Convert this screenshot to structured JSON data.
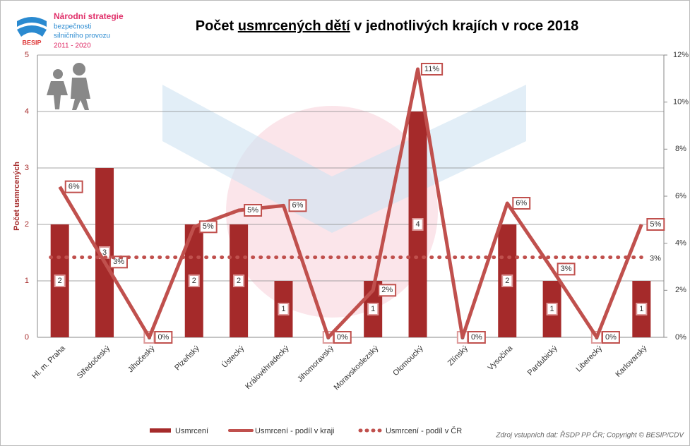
{
  "logo": {
    "mark": "BESIP",
    "lines": [
      "Národní strategie",
      "bezpečnosti",
      "silničního provozu",
      "2011 - 2020"
    ]
  },
  "source": "Zdroj vstupních dat: ŘSDP PP ČR; Copyright © BESIP/CDV",
  "chart_data": {
    "type": "bar-line",
    "title": {
      "before": "Počet ",
      "underlined": "usmrcených dětí",
      "after": " v jednotlivých krajích v roce 2018"
    },
    "y_label": "Počet usmrcených",
    "categories": [
      "Hl. m. Praha",
      "Středočeský",
      "Jihočeský",
      "Plzeňský",
      "Ústecký",
      "Královéhradecký",
      "Jihomoravský",
      "Moravskoslezský",
      "Olomoucký",
      "Zlínský",
      "Vysočina",
      "Pardubický",
      "Liberecký",
      "Karlovarský"
    ],
    "ylim": [
      0,
      5
    ],
    "yticks": [
      0,
      1,
      2,
      3,
      4,
      5
    ],
    "y2lim": [
      0,
      12
    ],
    "y2ticks": [
      {
        "value": 0,
        "label": "0%"
      },
      {
        "value": 2,
        "label": "2%"
      },
      {
        "value": 4,
        "label": "4%"
      },
      {
        "value": 6,
        "label": "6%"
      },
      {
        "value": 8,
        "label": "8%"
      },
      {
        "value": 10,
        "label": "10%"
      },
      {
        "value": 12,
        "label": "12%"
      }
    ],
    "grid": true,
    "series": [
      {
        "name": "Usmrcení",
        "kind": "bar",
        "color": "#a52a2a",
        "values": [
          2,
          3,
          0,
          2,
          2,
          1,
          0,
          1,
          4,
          0,
          2,
          1,
          0,
          1
        ]
      },
      {
        "name": "Usmrcení - podíl v kraji",
        "kind": "line",
        "axis": "y2",
        "color": "#c0504d",
        "values": [
          6.4,
          3.2,
          0,
          4.7,
          5.4,
          5.6,
          0,
          2.0,
          11.4,
          0,
          5.7,
          2.9,
          0,
          4.8
        ],
        "value_labels": [
          "6%",
          "3%",
          "0%",
          "5%",
          "5%",
          "6%",
          "0%",
          "2%",
          "11%",
          "0%",
          "6%",
          "3%",
          "0%",
          "5%"
        ]
      },
      {
        "name": "Usmrcení - podíl v ČR",
        "kind": "dotted",
        "axis": "y2",
        "color": "#c0504d",
        "values": [
          3.4,
          3.4,
          3.4,
          3.4,
          3.4,
          3.4,
          3.4,
          3.4,
          3.4,
          3.4,
          3.4,
          3.4,
          3.4,
          3.4
        ],
        "end_label": "3%"
      }
    ]
  }
}
